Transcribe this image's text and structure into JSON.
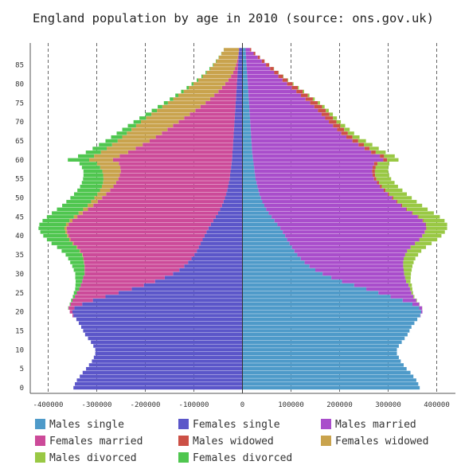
{
  "chart_data": {
    "type": "bar",
    "orientation": "horizontal",
    "stacked": true,
    "title": "England population by age in 2010 (source: ons.gov.uk)",
    "xlabel": "",
    "ylabel": "",
    "xlim": [
      -420000,
      420000
    ],
    "x_ticks": [
      -400000,
      -300000,
      -200000,
      -100000,
      0,
      100000,
      200000,
      300000,
      400000
    ],
    "x_tick_labels": [
      "-400000",
      "-300000",
      "-200000",
      "-100000",
      "0",
      "100000",
      "200000",
      "300000",
      "400000"
    ],
    "y_ticks": [
      0,
      5,
      10,
      15,
      20,
      25,
      30,
      35,
      40,
      45,
      50,
      55,
      60,
      65,
      70,
      75,
      80,
      85
    ],
    "y_tick_labels": [
      "0",
      "5",
      "10",
      "15",
      "20",
      "25",
      "30",
      "35",
      "40",
      "45",
      "50",
      "55",
      "60",
      "65",
      "70",
      "75",
      "80",
      "85"
    ],
    "grid": "vertical dashed",
    "legend": "bottom",
    "ages": [
      0,
      1,
      2,
      3,
      4,
      5,
      6,
      7,
      8,
      9,
      10,
      11,
      12,
      13,
      14,
      15,
      16,
      17,
      18,
      19,
      20,
      21,
      22,
      23,
      24,
      25,
      26,
      27,
      28,
      29,
      30,
      31,
      32,
      33,
      34,
      35,
      36,
      37,
      38,
      39,
      40,
      41,
      42,
      43,
      44,
      45,
      46,
      47,
      48,
      49,
      50,
      51,
      52,
      53,
      54,
      55,
      56,
      57,
      58,
      59,
      60,
      61,
      62,
      63,
      64,
      65,
      66,
      67,
      68,
      69,
      70,
      71,
      72,
      73,
      74,
      75,
      76,
      77,
      78,
      79,
      80,
      81,
      82,
      83,
      84,
      85,
      86,
      87,
      88,
      89
    ],
    "age_profile": {
      "males_single": [
        365000,
        362000,
        358000,
        352000,
        346000,
        338000,
        332000,
        326000,
        322000,
        318000,
        318000,
        322000,
        328000,
        334000,
        340000,
        344000,
        348000,
        354000,
        360000,
        366000,
        368000,
        364000,
        350000,
        330000,
        305000,
        280000,
        255000,
        230000,
        205000,
        183000,
        165000,
        150000,
        138000,
        128000,
        120000,
        113000,
        107000,
        102000,
        97000,
        92000,
        88000,
        83000,
        78000,
        72000,
        66000,
        60000,
        54000,
        49000,
        45000,
        41000,
        38000,
        35000,
        33000,
        31000,
        29000,
        27000,
        26000,
        25000,
        24000,
        23000,
        22000,
        21000,
        20000,
        19500,
        19000,
        18500,
        18000,
        17500,
        17000,
        16500,
        16000,
        15500,
        15000,
        14500,
        14000,
        13500,
        13000,
        12500,
        12000,
        11500,
        11000,
        10500,
        10000,
        9500,
        9000,
        8500,
        8000,
        7500,
        7000,
        6500
      ],
      "males_married": [
        0,
        0,
        0,
        0,
        0,
        0,
        0,
        0,
        0,
        0,
        0,
        0,
        0,
        0,
        0,
        0,
        0,
        0,
        0,
        800,
        2500,
        6000,
        14000,
        28000,
        47000,
        68000,
        90000,
        112000,
        132000,
        152000,
        168000,
        182000,
        193000,
        203000,
        212000,
        222000,
        232000,
        244000,
        258000,
        272000,
        282000,
        292000,
        300000,
        305000,
        305000,
        301000,
        295000,
        288000,
        282000,
        276000,
        270000,
        264000,
        258000,
        252000,
        248000,
        244000,
        242000,
        242000,
        244000,
        248000,
        268000,
        262000,
        245000,
        232000,
        220000,
        208000,
        196000,
        186000,
        178000,
        170000,
        162000,
        155000,
        148000,
        141000,
        134000,
        126000,
        117000,
        108000,
        99000,
        90000,
        81000,
        72000,
        64000,
        56000,
        48000,
        40000,
        32000,
        24000,
        16000,
        9000
      ],
      "males_widowed": [
        0,
        0,
        0,
        0,
        0,
        0,
        0,
        0,
        0,
        0,
        0,
        0,
        0,
        0,
        0,
        0,
        0,
        0,
        0,
        0,
        0,
        0,
        0,
        0,
        0,
        0,
        0,
        0,
        0,
        0,
        0,
        0,
        0,
        0,
        0,
        200,
        300,
        400,
        500,
        600,
        700,
        800,
        900,
        1000,
        1200,
        1400,
        1600,
        1800,
        2000,
        2300,
        2600,
        3000,
        3400,
        3800,
        4200,
        4700,
        5200,
        5800,
        6400,
        7000,
        7800,
        8600,
        9400,
        10200,
        11000,
        11800,
        12600,
        13500,
        14300,
        15000,
        15600,
        16000,
        16200,
        16200,
        16000,
        15600,
        15000,
        14200,
        13400,
        12500,
        11500,
        10500,
        9500,
        8500,
        7500,
        6500,
        5500,
        4500,
        3500,
        2500
      ],
      "males_divorced": [
        0,
        0,
        0,
        0,
        0,
        0,
        0,
        0,
        0,
        0,
        0,
        0,
        0,
        0,
        0,
        0,
        0,
        0,
        0,
        0,
        0,
        300,
        600,
        1200,
        2000,
        3200,
        4800,
        6800,
        9000,
        11500,
        14000,
        16500,
        19000,
        21500,
        24000,
        26500,
        29000,
        31500,
        34000,
        36500,
        39000,
        41000,
        42500,
        43500,
        44000,
        44000,
        43500,
        42500,
        41000,
        39500,
        38000,
        36500,
        35000,
        33500,
        32000,
        30500,
        29000,
        27500,
        26000,
        24500,
        23500,
        22000,
        20500,
        19000,
        17500,
        16000,
        14500,
        13000,
        11500,
        10000,
        9000,
        8000,
        7000,
        6000,
        5200,
        4500,
        3800,
        3200,
        2600,
        2100,
        1700,
        1300,
        1000,
        800,
        600,
        400,
        300,
        200,
        100,
        50
      ],
      "females_single": [
        348000,
        345000,
        341000,
        335000,
        329000,
        322000,
        316000,
        310000,
        306000,
        303000,
        303000,
        307000,
        312000,
        318000,
        324000,
        328000,
        332000,
        337000,
        342000,
        348000,
        350000,
        346000,
        330000,
        308000,
        282000,
        255000,
        228000,
        203000,
        180000,
        160000,
        143000,
        130000,
        120000,
        112000,
        105000,
        99000,
        94000,
        90000,
        86000,
        82000,
        78000,
        74000,
        70000,
        65000,
        60000,
        55000,
        50000,
        46000,
        42000,
        39000,
        36000,
        33500,
        31500,
        29500,
        28000,
        26500,
        25500,
        24500,
        23500,
        22500,
        21500,
        21000,
        20500,
        20000,
        19500,
        19000,
        18500,
        18000,
        17500,
        17000,
        16500,
        16000,
        15500,
        15000,
        14500,
        14000,
        13500,
        13000,
        12500,
        12000,
        11500,
        11000,
        10500,
        10000,
        9500,
        9000,
        8500,
        8000,
        7500,
        7000
      ],
      "females_married": [
        0,
        0,
        0,
        0,
        0,
        0,
        0,
        0,
        0,
        0,
        0,
        0,
        0,
        0,
        0,
        0,
        0,
        0,
        0,
        2000,
        5500,
        12000,
        24000,
        42000,
        63000,
        86000,
        108000,
        130000,
        150000,
        168000,
        182000,
        195000,
        205000,
        214000,
        222000,
        230000,
        240000,
        250000,
        262000,
        272000,
        280000,
        287000,
        292000,
        293000,
        290000,
        285000,
        279000,
        272000,
        265000,
        259000,
        253000,
        247000,
        241000,
        236000,
        232000,
        229000,
        227000,
        226000,
        228000,
        232000,
        245000,
        232000,
        215000,
        200000,
        186000,
        172000,
        160000,
        148000,
        137000,
        126000,
        115000,
        104000,
        93000,
        82000,
        72000,
        62000,
        53000,
        45000,
        37000,
        30000,
        24000,
        18000,
        13000,
        9000,
        6000,
        4000,
        2500,
        1500,
        800,
        400
      ],
      "females_widowed": [
        0,
        0,
        0,
        0,
        0,
        0,
        0,
        0,
        0,
        0,
        0,
        0,
        0,
        0,
        0,
        0,
        0,
        0,
        0,
        0,
        0,
        0,
        0,
        0,
        0,
        0,
        0,
        0,
        0,
        0,
        200,
        300,
        400,
        600,
        800,
        1000,
        1300,
        1700,
        2100,
        2600,
        3100,
        3700,
        4400,
        5200,
        6100,
        7200,
        8500,
        10000,
        11700,
        13600,
        15800,
        18200,
        20900,
        23900,
        27200,
        30700,
        34300,
        37900,
        41500,
        45000,
        49000,
        52500,
        56000,
        59500,
        63000,
        66000,
        69000,
        72000,
        74000,
        76000,
        77500,
        78500,
        79000,
        79000,
        78500,
        77500,
        76000,
        74000,
        71500,
        68500,
        65500,
        62000,
        58500,
        55000,
        51000,
        47000,
        43000,
        39000,
        35000,
        31000
      ],
      "females_divorced": [
        0,
        0,
        0,
        0,
        0,
        0,
        0,
        0,
        0,
        0,
        0,
        0,
        0,
        0,
        0,
        0,
        0,
        0,
        0,
        0,
        0,
        800,
        1600,
        2800,
        4300,
        6200,
        8400,
        10800,
        13400,
        16200,
        19000,
        22000,
        25000,
        28000,
        31000,
        34000,
        37000,
        40000,
        43000,
        46000,
        49000,
        51500,
        53500,
        55000,
        55500,
        55500,
        55000,
        54000,
        52500,
        51000,
        49500,
        48000,
        46500,
        45000,
        43500,
        42000,
        40500,
        39000,
        37500,
        36000,
        44000,
        33000,
        31000,
        29000,
        27000,
        25000,
        23000,
        21000,
        19000,
        17000,
        15300,
        13700,
        12200,
        10800,
        9500,
        8300,
        7200,
        6200,
        5300,
        4500,
        3800,
        3100,
        2500,
        2000,
        1600,
        1200,
        900,
        600,
        400,
        200
      ]
    },
    "series": [
      {
        "name": "Males single",
        "color": "#4e9ac9",
        "side": "right",
        "key": "males_single"
      },
      {
        "name": "Females single",
        "color": "#5b56c9",
        "side": "left",
        "key": "females_single"
      },
      {
        "name": "Males married",
        "color": "#a94dcb",
        "side": "right",
        "key": "males_married"
      },
      {
        "name": "Females married",
        "color": "#cc4a99",
        "side": "left",
        "key": "females_married"
      },
      {
        "name": "Males widowed",
        "color": "#cc5046",
        "side": "right",
        "key": "males_widowed"
      },
      {
        "name": "Females widowed",
        "color": "#c9a34d",
        "side": "left",
        "key": "females_widowed"
      },
      {
        "name": "Males divorced",
        "color": "#99c844",
        "side": "right",
        "key": "males_divorced"
      },
      {
        "name": "Females divorced",
        "color": "#4fc64f",
        "side": "left",
        "key": "females_divorced"
      }
    ]
  }
}
